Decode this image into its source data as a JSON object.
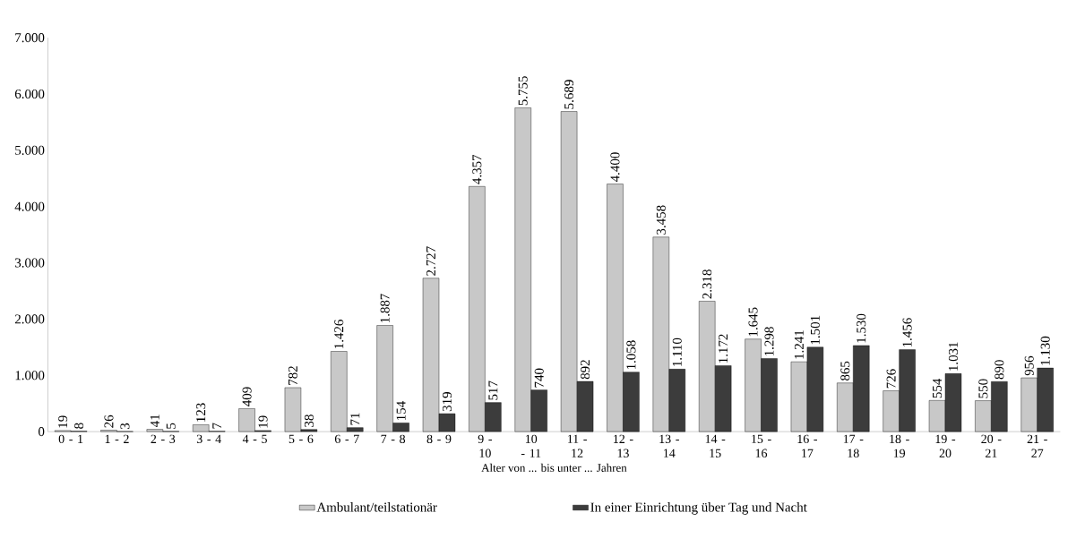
{
  "chart_data": {
    "type": "bar",
    "xlabel": "Alter von ... bis unter ... Jahren",
    "categories": [
      "0 - 1",
      "1 - 2",
      "2 - 3",
      "3 - 4",
      "4 - 5",
      "5 - 6",
      "6 - 7",
      "7 - 8",
      "8 - 9",
      "9 - 10",
      "10 - 11",
      "11 - 12",
      "12 - 13",
      "13 - 14",
      "14 - 15",
      "15 - 16",
      "16 - 17",
      "17 - 18",
      "18 - 19",
      "19 - 20",
      "20 - 21",
      "21 - 27"
    ],
    "series": [
      {
        "name": "Ambulant/teilstationär",
        "color": "#c8c8c8",
        "values": [
          19,
          26,
          41,
          123,
          409,
          782,
          1426,
          1887,
          2727,
          4357,
          5755,
          5689,
          4400,
          3458,
          2318,
          1645,
          1241,
          865,
          726,
          554,
          550,
          956
        ],
        "value_labels": [
          "19",
          "26",
          "41",
          "123",
          "409",
          "782",
          "1.426",
          "1.887",
          "2.727",
          "4.357",
          "5.755",
          "5.689",
          "4.400",
          "3.458",
          "2.318",
          "1.645",
          "1.241",
          "865",
          "726",
          "554",
          "550",
          "956"
        ]
      },
      {
        "name": "In einer Einrichtung über Tag und Nacht",
        "color": "#3c3c3c",
        "values": [
          8,
          3,
          5,
          7,
          19,
          38,
          71,
          154,
          319,
          517,
          740,
          892,
          1058,
          1110,
          1172,
          1298,
          1501,
          1530,
          1456,
          1031,
          890,
          1130
        ],
        "value_labels": [
          "8",
          "3",
          "5",
          "7",
          "19",
          "38",
          "71",
          "154",
          "319",
          "517",
          "740",
          "892",
          "1.058",
          "1.110",
          "1.172",
          "1.298",
          "1.501",
          "1.530",
          "1.456",
          "1.031",
          "890",
          "1.130"
        ]
      }
    ],
    "ylim": [
      0,
      7000
    ],
    "yticks": [
      0,
      {
        "value": 1000,
        "label": "1.000"
      },
      {
        "value": 2000,
        "label": "2.000"
      },
      {
        "value": 3000,
        "label": "3.000"
      },
      {
        "value": 4000,
        "label": "4.000"
      },
      {
        "value": 5000,
        "label": "5.000"
      },
      {
        "value": 6000,
        "label": "6.000"
      },
      {
        "value": 7000,
        "label": "7.000"
      }
    ],
    "grid": false,
    "legend": "bottom"
  }
}
